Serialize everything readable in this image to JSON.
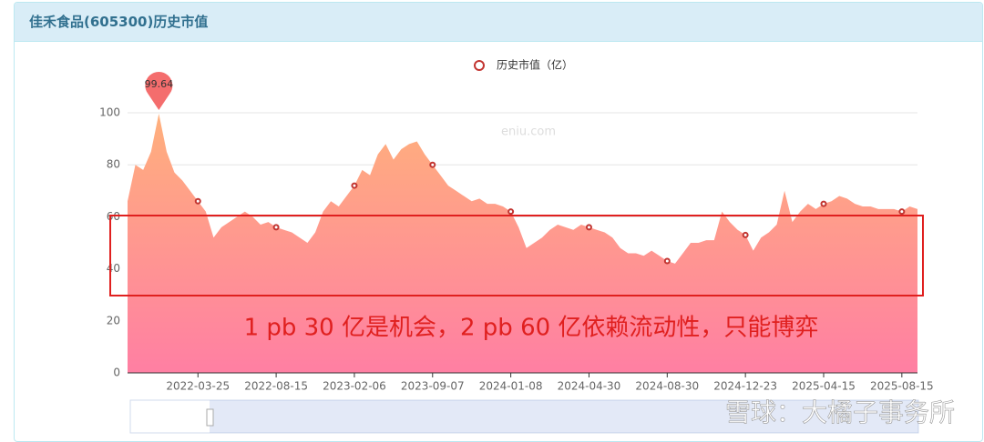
{
  "title": "佳禾食品(605300)历史市值",
  "chart_data": {
    "type": "area",
    "legend": "历史市值（亿）",
    "watermark": "eniu.com",
    "annotation": "1 pb 30 亿是机会，2 pb 60 亿依赖流动性，只能博弈",
    "credit": "雪球：大橘子事务所",
    "ylim": [
      0,
      100
    ],
    "yticks": [
      0,
      20,
      40,
      60,
      80,
      100
    ],
    "grid": true,
    "color_top": "#ffb07c",
    "color_bottom": "#ff7fa3",
    "marker_color": "#c23531",
    "categories": [
      null,
      null,
      null,
      null,
      null,
      null,
      null,
      null,
      null,
      "2022-03-25",
      null,
      null,
      null,
      null,
      null,
      null,
      null,
      null,
      null,
      "2022-08-15",
      null,
      null,
      null,
      null,
      null,
      null,
      null,
      null,
      null,
      "2023-02-06",
      null,
      null,
      null,
      null,
      null,
      null,
      null,
      null,
      null,
      "2023-09-07",
      null,
      null,
      null,
      null,
      null,
      null,
      null,
      null,
      null,
      "2024-01-08",
      null,
      null,
      null,
      null,
      null,
      null,
      null,
      null,
      null,
      "2024-04-30",
      null,
      null,
      null,
      null,
      null,
      null,
      null,
      null,
      null,
      "2024-08-30",
      null,
      null,
      null,
      null,
      null,
      null,
      null,
      null,
      null,
      "2024-12-23",
      null,
      null,
      null,
      null,
      null,
      null,
      null,
      null,
      null,
      "2025-04-15",
      null,
      null,
      null,
      null,
      null,
      null,
      null,
      null,
      null,
      "2025-08-15",
      null,
      null
    ],
    "series": [
      {
        "name": "历史市值（亿）",
        "color": "#c23531",
        "values": [
          66,
          80,
          78,
          85,
          99.64,
          85,
          77,
          74,
          70,
          66,
          62,
          52,
          56,
          58,
          60,
          62,
          60,
          57,
          58,
          56,
          55,
          54,
          52,
          50,
          54,
          62,
          66,
          64,
          68,
          72,
          78,
          76,
          84,
          88,
          82,
          86,
          88,
          89,
          84,
          80,
          76,
          72,
          70,
          68,
          66,
          67,
          65,
          65,
          64,
          62,
          56,
          48,
          50,
          52,
          55,
          57,
          56,
          55,
          57,
          56,
          55,
          54,
          52,
          48,
          46,
          46,
          45,
          47,
          45,
          43,
          42,
          46,
          50,
          50,
          51,
          51,
          62,
          58,
          55,
          53,
          47,
          52,
          54,
          57,
          70,
          58,
          62,
          65,
          63,
          65,
          66,
          68,
          67,
          65,
          64,
          64,
          63,
          63,
          63,
          62,
          64,
          63
        ]
      }
    ]
  }
}
